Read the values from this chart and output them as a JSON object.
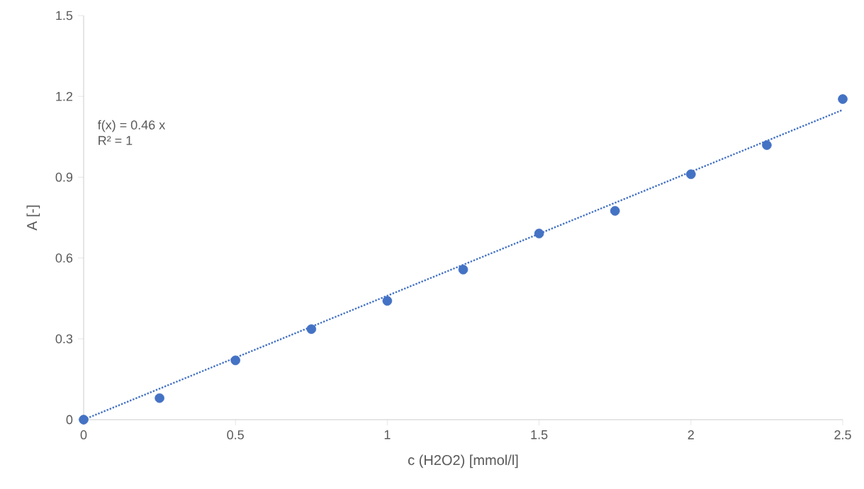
{
  "chart_data": {
    "type": "scatter",
    "xlabel": "c (H2O2) [mmol/l]",
    "ylabel": "A [-]",
    "x": [
      0,
      0.25,
      0.5,
      0.75,
      1,
      1.25,
      1.5,
      1.75,
      2,
      2.25,
      2.5
    ],
    "series": [
      {
        "color": "#4472c4",
        "marker": "circle",
        "values": [
          0,
          0.08,
          0.22,
          0.336,
          0.441,
          0.557,
          0.691,
          0.775,
          0.911,
          1.019,
          1.19
        ]
      },
      {
        "type": "line",
        "color": "#4472c4",
        "line_style": "dotted",
        "marker": "none",
        "x": [
          0,
          2.5
        ],
        "values": [
          0,
          1.15
        ]
      }
    ],
    "xlim": [
      0,
      2.5
    ],
    "ylim": [
      0,
      1.5
    ],
    "xticks": [
      0,
      0.5,
      1,
      1.5,
      2,
      2.5
    ],
    "yticks": [
      0,
      0.3,
      0.6,
      0.9,
      1.2,
      1.5
    ],
    "grid": false,
    "annotations": [
      "f(x) = 0.46 x",
      "R² = 1"
    ]
  }
}
